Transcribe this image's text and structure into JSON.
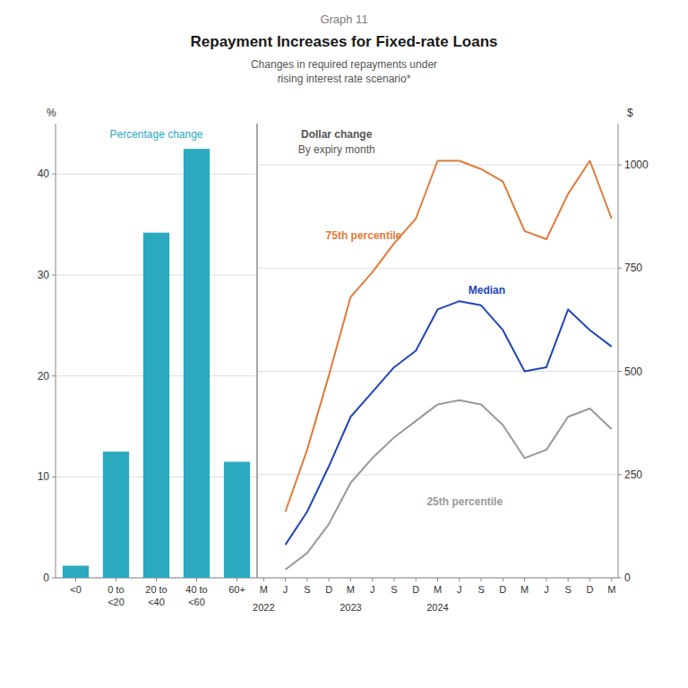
{
  "title": "Repayment Increases for Fixed-rate Loans",
  "subtitle": "Changes in required repayments under\nrising interest rate scenario*",
  "annotations": [
    "Graph 11"
  ],
  "chart_data": [
    {
      "type": "bar",
      "title": "Percentage change",
      "categories": [
        "<0",
        "0 to\n<20",
        "20 to\n<40",
        "40 to\n<60",
        "60+"
      ],
      "values": [
        1.2,
        12.5,
        34.2,
        42.5,
        11.5
      ],
      "color": "#2baabf",
      "ylabel": "%",
      "ylim": [
        0,
        45
      ],
      "yticks": [
        0,
        10,
        20,
        30,
        40
      ],
      "grid": true
    },
    {
      "type": "line",
      "title": "Dollar change",
      "subtitle": "By expiry month",
      "categories": [
        "M",
        "J",
        "S",
        "D",
        "M",
        "J",
        "S",
        "D",
        "M",
        "J",
        "S",
        "D",
        "M",
        "J",
        "S",
        "D",
        "M"
      ],
      "annotations": [
        {
          "text": "2022",
          "x": 0
        },
        {
          "text": "2023",
          "x": 4
        },
        {
          "text": "2024",
          "x": 8
        }
      ],
      "series": [
        {
          "name": "75th percentile",
          "color": "#e07b39",
          "values": [
            null,
            160,
            310,
            490,
            680,
            740,
            810,
            870,
            1010,
            1010,
            990,
            960,
            840,
            820,
            930,
            1010,
            870
          ]
        },
        {
          "name": "Median",
          "color": "#2244bb",
          "values": [
            null,
            80,
            160,
            270,
            390,
            450,
            510,
            550,
            650,
            670,
            660,
            600,
            500,
            510,
            650,
            600,
            560
          ]
        },
        {
          "name": "25th percentile",
          "color": "#999999",
          "values": [
            null,
            20,
            60,
            130,
            230,
            290,
            340,
            380,
            420,
            430,
            420,
            370,
            290,
            310,
            390,
            410,
            360
          ]
        }
      ],
      "ylabel": "$",
      "ylim": [
        0,
        1100
      ],
      "yticks": [
        0,
        250,
        500,
        750,
        1000
      ],
      "grid": true
    }
  ]
}
